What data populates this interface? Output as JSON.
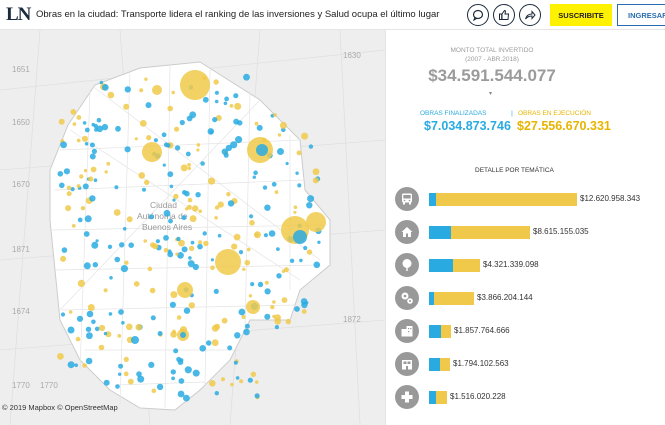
{
  "header": {
    "logo": "LN",
    "headline": "Obras en la ciudad: Transporte lidera el ranking de las inversiones y Salud ocupa el último lugar",
    "subscribe_label": "SUSCRIBITE",
    "login_label": "INGRESAR",
    "icons": [
      "comment-icon",
      "thumbs-up-icon",
      "share-icon"
    ]
  },
  "map": {
    "attribution": "© 2019 Mapbox © OpenStreetMap",
    "place_labels": [
      "Ciudad",
      "Autónoma de",
      "Buenos Aires"
    ],
    "grid_labels": [
      "1651",
      "1650",
      "1670",
      "1871",
      "1674",
      "1630",
      "1770",
      "1872",
      "1770"
    ],
    "colors": {
      "finalizadas": "#29abe2",
      "en_ejecucion": "#f0c94a"
    }
  },
  "summary": {
    "total_label": "MONTO TOTAL INVERTIDO",
    "period_label": "(2007 - ABR.2018)",
    "total_value": "$34.591.544.077",
    "finalizadas_label": "OBRAS FINALIZADAS",
    "ejecucion_label": "OBRAS EN EJECUCIÓN",
    "finalizadas_value": "$7.034.873.746",
    "ejecucion_value": "$27.556.670.331"
  },
  "detail": {
    "title": "DETALLE POR TEMÁTICA",
    "categories": [
      {
        "icon": "bus-icon",
        "amount": "$12.620.958.343",
        "finalizadas_share": 0.05
      },
      {
        "icon": "house-icon",
        "amount": "$8.615.155.035",
        "finalizadas_share": 0.22
      },
      {
        "icon": "tree-icon",
        "amount": "$4.321.339.098",
        "finalizadas_share": 0.47
      },
      {
        "icon": "gears-icon",
        "amount": "$3.866.204.144",
        "finalizadas_share": 0.1
      },
      {
        "icon": "building-icon",
        "amount": "$1.857.764.666",
        "finalizadas_share": 0.55
      },
      {
        "icon": "school-icon",
        "amount": "$1.794.102.563",
        "finalizadas_share": 0.52
      },
      {
        "icon": "health-cross-icon",
        "amount": "$1.516.020.228",
        "finalizadas_share": 0.4
      }
    ]
  }
}
